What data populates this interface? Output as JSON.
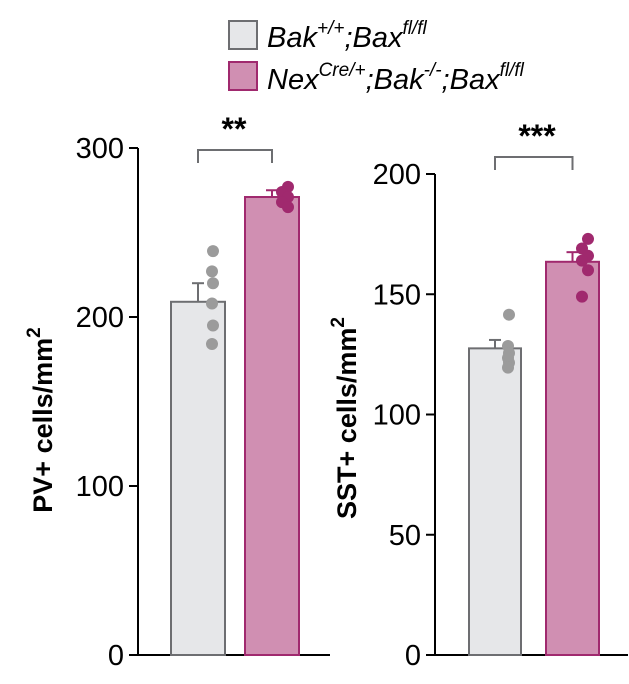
{
  "legend": {
    "entries": [
      {
        "base1": "Bak",
        "sup1": "+/+",
        "base2": ";Bax",
        "sup2": "fl/fl",
        "fill": "#e6e7e9",
        "stroke": "#6d6e71"
      },
      {
        "base0": "Nex",
        "sup0": "Cre/+",
        "base1": ";Bak",
        "sup1": "-/-",
        "base2": ";Bax",
        "sup2": "fl/fl",
        "fill": "#d08fb2",
        "stroke": "#a0296e"
      }
    ]
  },
  "chart_data": [
    {
      "type": "bar",
      "ylabel": "PV+ cells/mm²",
      "ylabel_main": "PV+ cells/mm",
      "ylabel_sup": "2",
      "ylim": [
        0,
        300
      ],
      "yticks": [
        "0",
        "100",
        "200",
        "300"
      ],
      "significance": "**",
      "grid": false,
      "series": [
        {
          "name": "Bak+/+;Baxfl/fl",
          "mean": 209,
          "error": 11,
          "points": [
            239,
            227,
            220,
            208,
            195,
            184
          ]
        },
        {
          "name": "NexCre/+;Bak-/-;Baxfl/fl",
          "mean": 271,
          "error": 4,
          "points": [
            277,
            274,
            271,
            268,
            265
          ]
        }
      ]
    },
    {
      "type": "bar",
      "ylabel": "SST+ cells/mm²",
      "ylabel_main": "SST+ cells/mm",
      "ylabel_sup": "2",
      "ylim": [
        0,
        200
      ],
      "yticks": [
        "0",
        "50",
        "100",
        "150",
        "200"
      ],
      "significance": "***",
      "grid": false,
      "series": [
        {
          "name": "Bak+/+;Baxfl/fl",
          "mean": 127.5,
          "error": 3.5,
          "points": [
            141.5,
            128.5,
            125.5,
            123.5,
            121.5,
            119.5
          ]
        },
        {
          "name": "NexCre/+;Bak-/-;Baxfl/fl",
          "mean": 163.5,
          "error": 4,
          "points": [
            173,
            169,
            166,
            164,
            160,
            149
          ]
        }
      ]
    }
  ],
  "colors": {
    "wt_fill": "#e6e7e9",
    "wt_stroke": "#6d6e71",
    "wt_dot": "#9b9b9b",
    "ko_fill": "#d08fb2",
    "ko_stroke": "#a0296e",
    "ko_dot": "#a0296e"
  }
}
